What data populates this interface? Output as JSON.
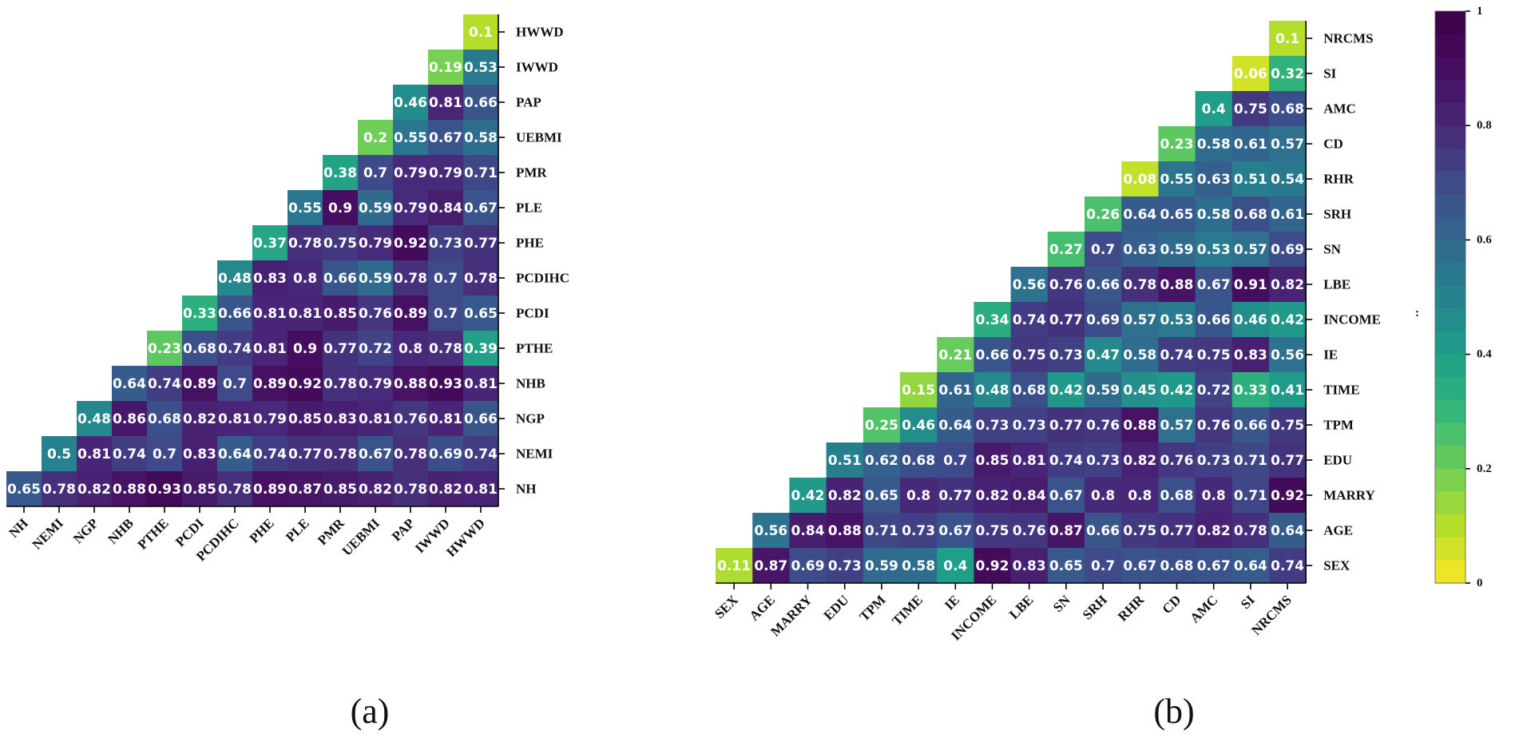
{
  "chart_data": [
    {
      "type": "heatmap",
      "caption": "(a)",
      "layout": "lower-triangle correlation matrix",
      "variables": [
        "NH",
        "NEMI",
        "NGP",
        "NHB",
        "PTHE",
        "PCDI",
        "PCDIHC",
        "PHE",
        "PLE",
        "PMR",
        "UEBMI",
        "PAP",
        "IWWD",
        "HWWD"
      ],
      "rows": [
        {
          "label": "HWWD",
          "values": [
            0.1
          ]
        },
        {
          "label": "IWWD",
          "values": [
            0.19,
            0.53
          ]
        },
        {
          "label": "PAP",
          "values": [
            0.46,
            0.81,
            0.66
          ]
        },
        {
          "label": "UEBMI",
          "values": [
            0.2,
            0.55,
            0.67,
            0.58
          ]
        },
        {
          "label": "PMR",
          "values": [
            0.38,
            0.7,
            0.79,
            0.79,
            0.71
          ]
        },
        {
          "label": "PLE",
          "values": [
            0.55,
            0.9,
            0.59,
            0.79,
            0.84,
            0.67
          ]
        },
        {
          "label": "PHE",
          "values": [
            0.37,
            0.78,
            0.75,
            0.79,
            0.92,
            0.73,
            0.77
          ]
        },
        {
          "label": "PCDIHC",
          "values": [
            0.48,
            0.83,
            0.8,
            0.66,
            0.59,
            0.78,
            0.7,
            0.78
          ]
        },
        {
          "label": "PCDI",
          "values": [
            0.33,
            0.66,
            0.81,
            0.81,
            0.85,
            0.76,
            0.89,
            0.7,
            0.65
          ]
        },
        {
          "label": "PTHE",
          "values": [
            0.23,
            0.68,
            0.74,
            0.81,
            0.9,
            0.77,
            0.72,
            0.8,
            0.78,
            0.39
          ]
        },
        {
          "label": "NHB",
          "values": [
            0.64,
            0.74,
            0.89,
            0.7,
            0.89,
            0.92,
            0.78,
            0.79,
            0.88,
            0.93,
            0.81
          ]
        },
        {
          "label": "NGP",
          "values": [
            0.48,
            0.86,
            0.68,
            0.82,
            0.81,
            0.79,
            0.85,
            0.83,
            0.81,
            0.76,
            0.81,
            0.66
          ]
        },
        {
          "label": "NEMI",
          "values": [
            0.5,
            0.81,
            0.74,
            0.7,
            0.83,
            0.64,
            0.74,
            0.77,
            0.78,
            0.67,
            0.78,
            0.69,
            0.74
          ]
        },
        {
          "label": "NH",
          "values": [
            0.65,
            0.78,
            0.82,
            0.88,
            0.93,
            0.85,
            0.78,
            0.89,
            0.87,
            0.85,
            0.82,
            0.78,
            0.82,
            0.81
          ]
        }
      ]
    },
    {
      "type": "heatmap",
      "caption": "(b)",
      "layout": "lower-triangle correlation matrix",
      "variables": [
        "SEX",
        "AGE",
        "MARRY",
        "EDU",
        "TPM",
        "TIME",
        "IE",
        "INCOME",
        "LBE",
        "SN",
        "SRH",
        "RHR",
        "CD",
        "AMC",
        "SI",
        "NRCMS"
      ],
      "rows": [
        {
          "label": "NRCMS",
          "values": [
            0.1
          ]
        },
        {
          "label": "SI",
          "values": [
            0.06,
            0.32
          ]
        },
        {
          "label": "AMC",
          "values": [
            0.4,
            0.75,
            0.68
          ]
        },
        {
          "label": "CD",
          "values": [
            0.23,
            0.58,
            0.61,
            0.57
          ]
        },
        {
          "label": "RHR",
          "values": [
            0.08,
            0.55,
            0.63,
            0.51,
            0.54
          ]
        },
        {
          "label": "SRH",
          "values": [
            0.26,
            0.64,
            0.65,
            0.58,
            0.68,
            0.61
          ]
        },
        {
          "label": "SN",
          "values": [
            0.27,
            0.7,
            0.63,
            0.59,
            0.53,
            0.57,
            0.69
          ]
        },
        {
          "label": "LBE",
          "values": [
            0.56,
            0.76,
            0.66,
            0.78,
            0.88,
            0.67,
            0.91,
            0.82
          ]
        },
        {
          "label": "INCOME",
          "values": [
            0.34,
            0.74,
            0.77,
            0.69,
            0.57,
            0.53,
            0.66,
            0.46,
            0.42
          ]
        },
        {
          "label": "IE",
          "values": [
            0.21,
            0.66,
            0.75,
            0.73,
            0.47,
            0.58,
            0.74,
            0.75,
            0.83,
            0.56
          ]
        },
        {
          "label": "TIME",
          "values": [
            0.15,
            0.61,
            0.48,
            0.68,
            0.42,
            0.59,
            0.45,
            0.42,
            0.72,
            0.33,
            0.41
          ]
        },
        {
          "label": "TPM",
          "values": [
            0.25,
            0.46,
            0.64,
            0.73,
            0.73,
            0.77,
            0.76,
            0.88,
            0.57,
            0.76,
            0.66,
            0.75
          ]
        },
        {
          "label": "EDU",
          "values": [
            0.51,
            0.62,
            0.68,
            0.7,
            0.85,
            0.81,
            0.74,
            0.73,
            0.82,
            0.76,
            0.73,
            0.71,
            0.77
          ]
        },
        {
          "label": "MARRY",
          "values": [
            0.42,
            0.82,
            0.65,
            0.8,
            0.77,
            0.82,
            0.84,
            0.67,
            0.8,
            0.8,
            0.68,
            0.8,
            0.71,
            0.92
          ]
        },
        {
          "label": "AGE",
          "values": [
            0.56,
            0.84,
            0.88,
            0.71,
            0.73,
            0.67,
            0.75,
            0.76,
            0.87,
            0.66,
            0.75,
            0.77,
            0.82,
            0.78,
            0.64
          ]
        },
        {
          "label": "SEX",
          "values": [
            0.11,
            0.87,
            0.69,
            0.73,
            0.59,
            0.58,
            0.4,
            0.92,
            0.83,
            0.65,
            0.7,
            0.67,
            0.68,
            0.67,
            0.64,
            0.74
          ]
        }
      ]
    }
  ],
  "colorbar": {
    "min": 0,
    "max": 1,
    "ticks": [
      0,
      0.2,
      0.4,
      0.6,
      0.8,
      1
    ],
    "tick_labels": [
      "0",
      "0.2",
      "0.4",
      "0.6",
      "0.8",
      "1"
    ],
    "colormap": "viridis (reversed: 0 = yellow, 1 = dark purple)"
  },
  "stray_mark": ":",
  "colors": {
    "low": "#fde725",
    "mid": "#21918c",
    "high": "#440154",
    "cell_text": "#ffffff",
    "axis": "#000000"
  }
}
